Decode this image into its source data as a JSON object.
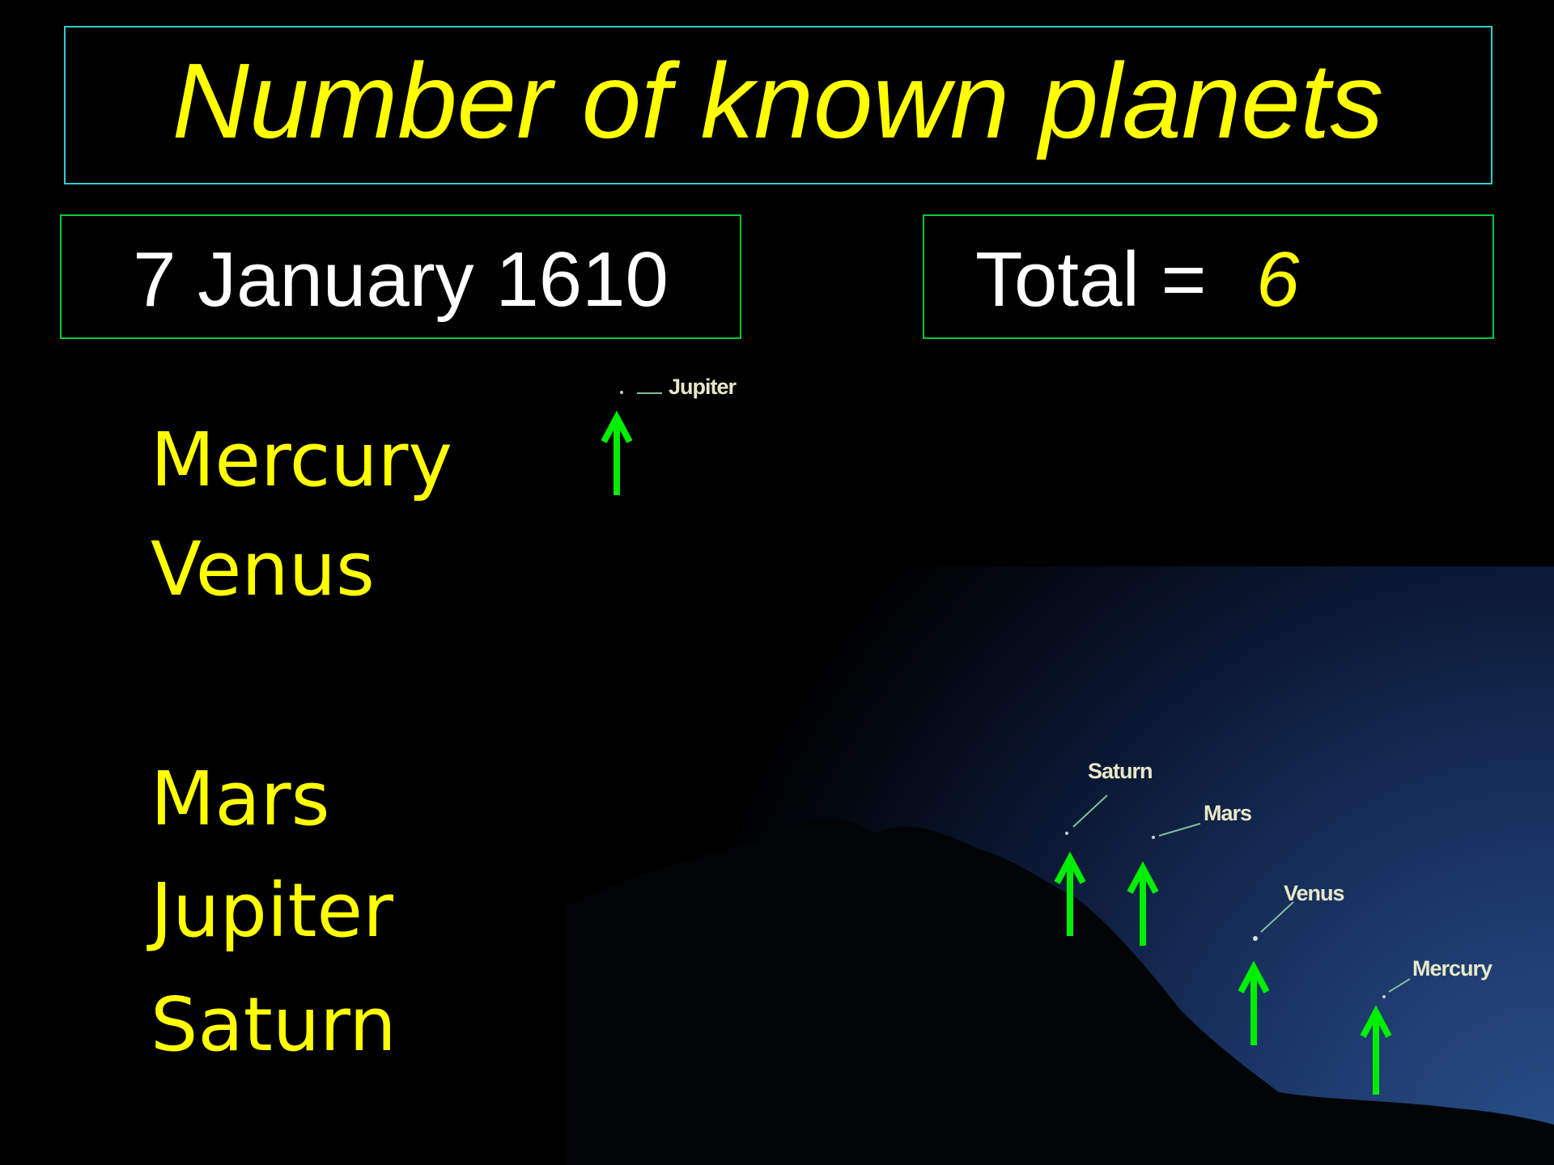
{
  "slide": {
    "title": "Number of known planets",
    "date": "7 January 1610",
    "total_label": "Total =",
    "total_value": "6",
    "planets": [
      "Mercury",
      "Venus",
      "Mars",
      "Jupiter",
      "Saturn"
    ],
    "photo_labels": [
      "Jupiter",
      "Saturn",
      "Mars",
      "Venus",
      "Mercury"
    ]
  }
}
